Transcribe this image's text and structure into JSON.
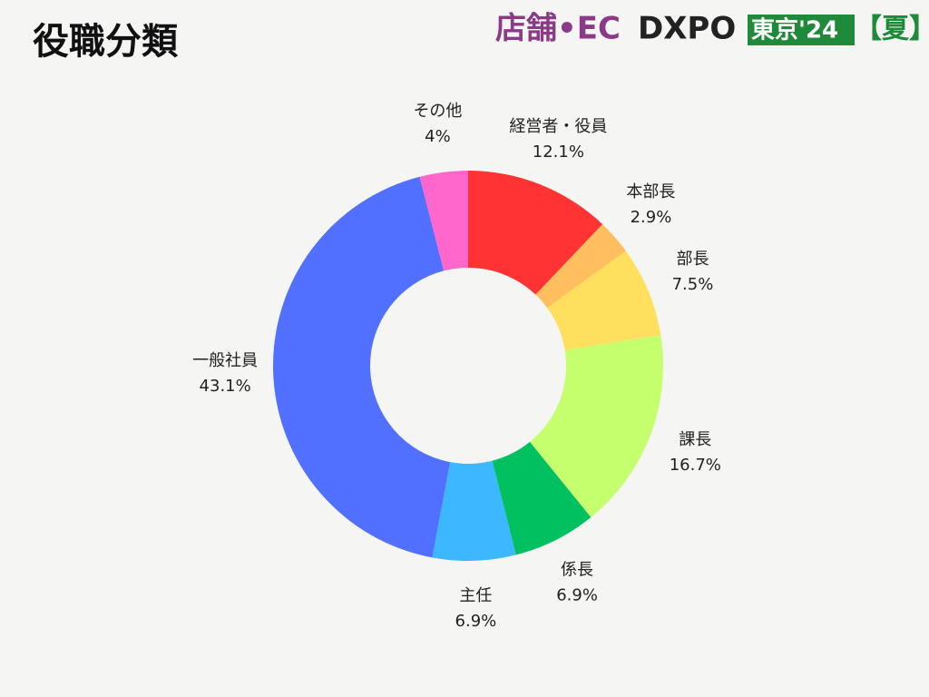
{
  "title": "役職分類",
  "logo": {
    "part1": "店舗•EC",
    "part2": "DXPO",
    "part3": "東京'24",
    "part4": "【夏】"
  },
  "chart_data": {
    "type": "donut",
    "categories": [
      "経営者・役員",
      "本部長",
      "部長",
      "課長",
      "係長",
      "主任",
      "一般社員",
      "その他"
    ],
    "values": [
      12.1,
      2.9,
      7.5,
      16.7,
      6.9,
      6.9,
      43.1,
      4
    ],
    "value_labels": [
      "12.1%",
      "2.9%",
      "7.5%",
      "16.7%",
      "6.9%",
      "6.9%",
      "43.1%",
      "4%"
    ],
    "colors": [
      "#ff3333",
      "#ffbf5e",
      "#ffdf5e",
      "#c5ff6e",
      "#00c060",
      "#3bb8ff",
      "#5270ff",
      "#ff66cc"
    ]
  }
}
